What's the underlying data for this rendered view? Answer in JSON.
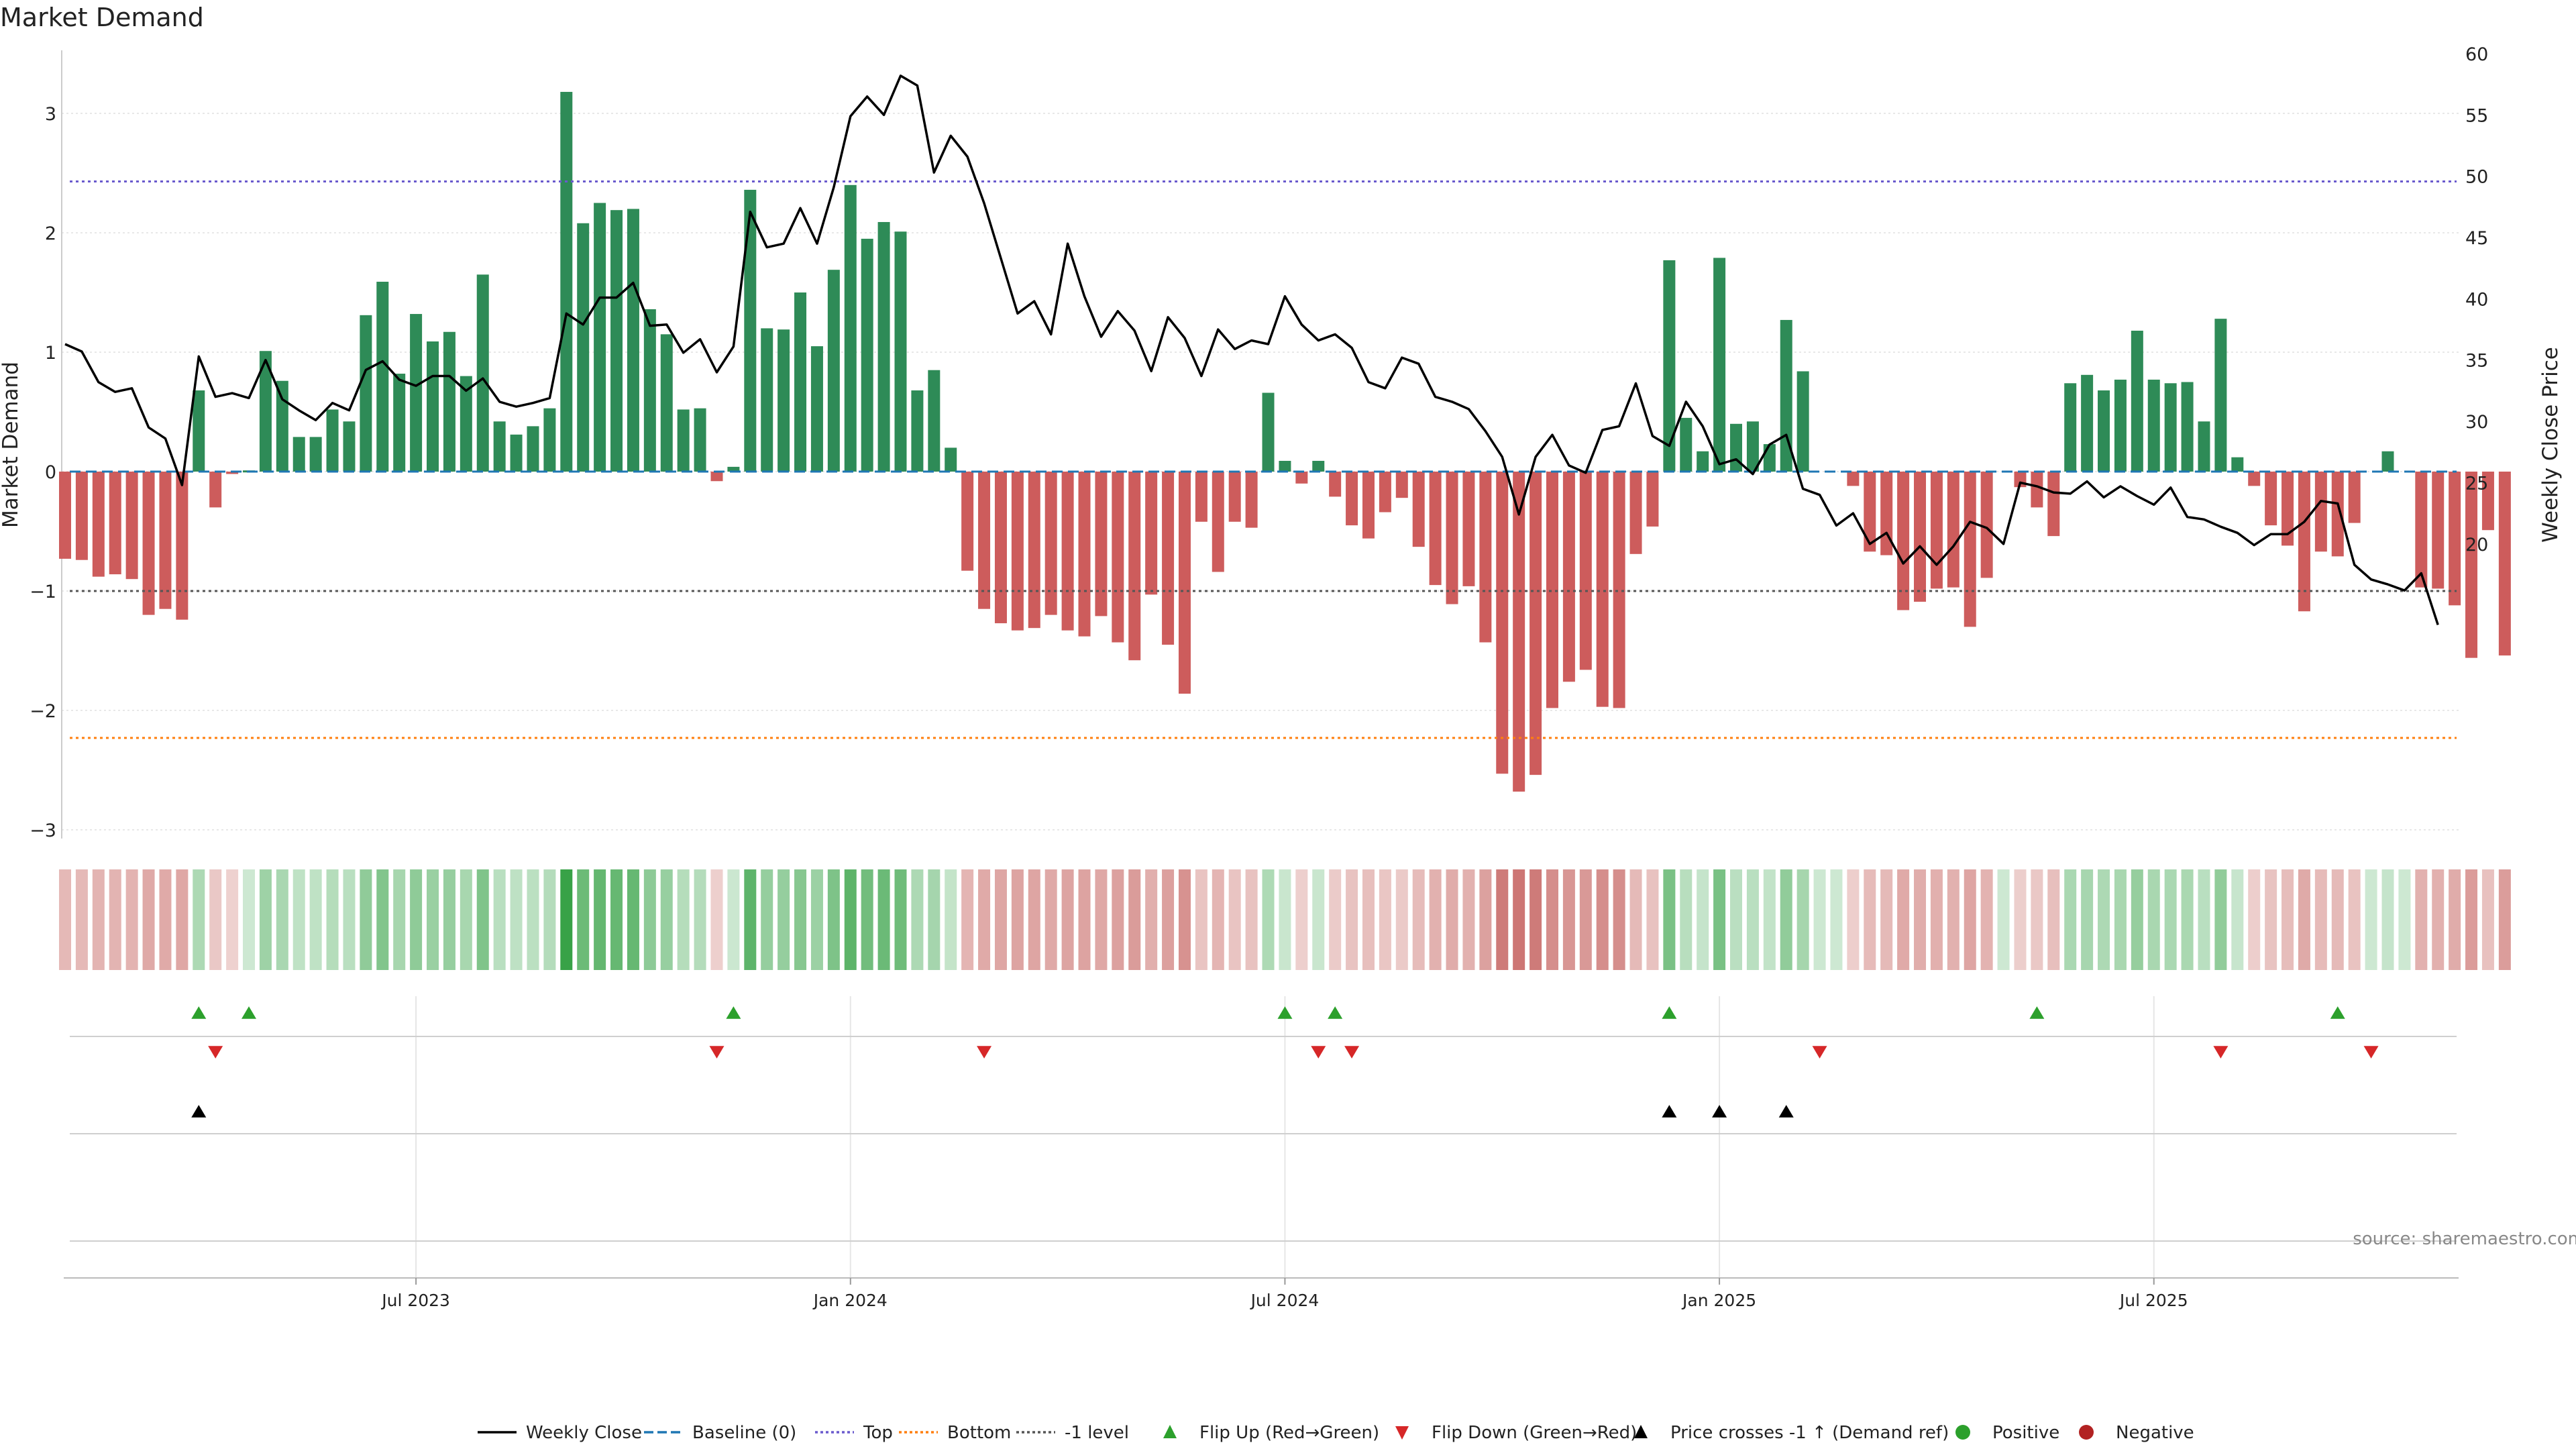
{
  "chart_data": {
    "type": "bar",
    "title": "Market Demand",
    "ylabel": "Market Demand",
    "y2label": "Weekly Close Price",
    "ylim": [
      -3.5,
      3.5
    ],
    "y2lim": [
      -8.2,
      60
    ],
    "yticks": [
      3,
      2,
      1,
      0,
      -1,
      -2,
      -3
    ],
    "ytick_labels": [
      "3",
      "2",
      "1",
      "0",
      "−1",
      "−2",
      "−3"
    ],
    "y2ticks": [
      60,
      55,
      50,
      45,
      40,
      35,
      30,
      25,
      20
    ],
    "y2tick_labels": [
      "60",
      "55",
      "50",
      "45",
      "40",
      "35",
      "30",
      "25",
      "20"
    ],
    "xticks": [
      {
        "label": "Jul 2023",
        "week": 21
      },
      {
        "label": "Jan 2024",
        "week": 47
      },
      {
        "label": "Jul 2024",
        "week": 73
      },
      {
        "label": "Jan 2025",
        "week": 99
      },
      {
        "label": "Jul 2025",
        "week": 125
      }
    ],
    "reference_lines": [
      {
        "name": "Top",
        "value": 2.43,
        "color": "#6a5acd",
        "style": "dotted"
      },
      {
        "name": "Bottom",
        "value": -2.23,
        "color": "#ff7f0e",
        "style": "dotted"
      },
      {
        "name": "-1 level",
        "value": -1.0,
        "color": "#555555",
        "style": "dotted"
      },
      {
        "name": "Baseline (0)",
        "value": 0,
        "color": "#1f77b4",
        "style": "dashed"
      }
    ],
    "series": [
      {
        "name": "Market Demand",
        "kind": "bar",
        "values": [
          -0.73,
          -0.74,
          -0.88,
          -0.86,
          -0.9,
          -1.2,
          -1.15,
          -1.24,
          0.68,
          -0.3,
          -0.02,
          0.01,
          1.01,
          0.76,
          0.29,
          0.29,
          0.52,
          0.42,
          1.31,
          1.59,
          0.82,
          1.32,
          1.09,
          1.17,
          0.8,
          1.65,
          0.42,
          0.31,
          0.38,
          0.53,
          3.18,
          2.08,
          2.25,
          2.19,
          2.2,
          1.36,
          1.15,
          0.52,
          0.53,
          -0.08,
          0.04,
          2.36,
          1.2,
          1.19,
          1.5,
          1.05,
          1.69,
          2.4,
          1.95,
          2.09,
          2.01,
          0.68,
          0.85,
          0.2,
          -0.83,
          -1.15,
          -1.27,
          -1.33,
          -1.31,
          -1.2,
          -1.33,
          -1.38,
          -1.21,
          -1.43,
          -1.58,
          -1.03,
          -1.45,
          -1.86,
          -0.42,
          -0.84,
          -0.42,
          -0.47,
          0.66,
          0.09,
          -0.1,
          0.09,
          -0.21,
          -0.45,
          -0.56,
          -0.34,
          -0.22,
          -0.63,
          -0.95,
          -1.11,
          -0.96,
          -1.43,
          -2.53,
          -2.68,
          -2.54,
          -1.98,
          -1.76,
          -1.66,
          -1.97,
          -1.98,
          -0.69,
          -0.46,
          1.77,
          0.45,
          0.17,
          1.79,
          0.4,
          0.42,
          0.23,
          1.27,
          0.84,
          0.0,
          0.0,
          -0.12,
          -0.67,
          -0.7,
          -1.16,
          -1.09,
          -0.98,
          -0.97,
          -1.3,
          -0.89,
          0.0,
          -0.13,
          -0.3,
          -0.54,
          0.74,
          0.81,
          0.68,
          0.77,
          1.18,
          0.77,
          0.74,
          0.75,
          0.42,
          1.28,
          0.12,
          -0.12,
          -0.45,
          -0.62,
          -1.17,
          -0.67,
          -0.71,
          -0.43,
          0.0,
          0.17,
          0.0,
          -0.97,
          -0.98,
          -1.12,
          -1.56,
          -0.49,
          -1.54
        ]
      },
      {
        "name": "Weekly Close",
        "kind": "line",
        "axis": "right",
        "values": [
          36.3,
          35.7,
          33.2,
          32.4,
          32.7,
          29.5,
          28.6,
          24.8,
          35.3,
          32.0,
          32.3,
          31.9,
          35.0,
          31.8,
          30.9,
          30.1,
          31.5,
          30.9,
          34.2,
          34.9,
          33.4,
          32.9,
          33.7,
          33.7,
          32.5,
          33.5,
          31.6,
          31.2,
          31.5,
          31.9,
          38.8,
          37.9,
          40.1,
          40.1,
          41.3,
          37.8,
          37.9,
          35.6,
          36.7,
          34.0,
          36.1,
          47.1,
          44.2,
          44.5,
          47.4,
          44.5,
          49.1,
          54.9,
          56.5,
          55.0,
          58.2,
          57.4,
          50.3,
          53.3,
          51.6,
          47.8,
          43.3,
          38.8,
          39.8,
          37.1,
          44.5,
          40.2,
          36.9,
          39.0,
          37.4,
          34.1,
          38.5,
          36.8,
          33.7,
          37.5,
          35.9,
          36.6,
          36.3,
          40.2,
          37.9,
          36.6,
          37.1,
          36.0,
          33.2,
          32.7,
          35.2,
          34.7,
          32.0,
          31.6,
          31.0,
          29.2,
          27.1,
          22.4,
          27.1,
          28.9,
          26.4,
          25.8,
          29.3,
          29.6,
          33.1,
          28.8,
          28.0,
          31.6,
          29.6,
          26.5,
          26.9,
          25.7,
          28.1,
          28.9,
          24.5,
          24.0,
          21.5,
          22.5,
          20.0,
          20.9,
          18.4,
          19.8,
          18.3,
          19.8,
          21.8,
          21.3,
          20.0,
          25.0,
          24.7,
          24.2,
          24.1,
          25.1,
          23.8,
          24.7,
          23.9,
          23.2,
          24.6,
          22.2,
          22.0,
          21.4,
          20.9,
          19.9,
          20.8,
          20.8,
          21.8,
          23.5,
          23.3,
          18.3,
          17.1,
          16.7,
          16.2,
          17.6,
          13.4
        ]
      }
    ],
    "signals": {
      "flip_up_weeks": [
        8,
        11,
        40,
        73,
        76,
        96,
        118,
        136
      ],
      "flip_down_weeks": [
        9,
        39,
        55,
        75,
        77,
        105,
        129,
        138
      ],
      "price_cross_weeks": [
        8,
        96,
        99,
        103
      ]
    },
    "source_note": "source: sharemaestro.com",
    "legend_position": "bottom",
    "legend": [
      {
        "label": "Weekly Close",
        "marker": "line",
        "color": "#000000"
      },
      {
        "label": "Baseline (0)",
        "marker": "dashed",
        "color": "#1f77b4"
      },
      {
        "label": "Top",
        "marker": "dotted",
        "color": "#6a5acd"
      },
      {
        "label": "Bottom",
        "marker": "dotted",
        "color": "#ff7f0e"
      },
      {
        "label": "-1 level",
        "marker": "dotted",
        "color": "#555555"
      },
      {
        "label": "Flip Up (Red→Green)",
        "marker": "tri-up",
        "color": "#2ca02c"
      },
      {
        "label": "Flip Down (Green→Red)",
        "marker": "tri-down",
        "color": "#d62728"
      },
      {
        "label": "Price crosses -1 ↑ (Demand ref)",
        "marker": "tri-up",
        "color": "#000000"
      },
      {
        "label": "Positive",
        "marker": "dot",
        "color": "#2ca02c"
      },
      {
        "label": "Negative",
        "marker": "dot",
        "color": "#b22222"
      }
    ]
  },
  "colors": {
    "positive_bar": "#2e8b57",
    "negative_bar": "#cd5c5c",
    "price_line": "#000000",
    "flip_up": "#2ca02c",
    "flip_down": "#d62728",
    "grid": "#e8e8e8",
    "axis": "#cccccc",
    "tick_text": "#222222",
    "note_text": "#888888"
  }
}
